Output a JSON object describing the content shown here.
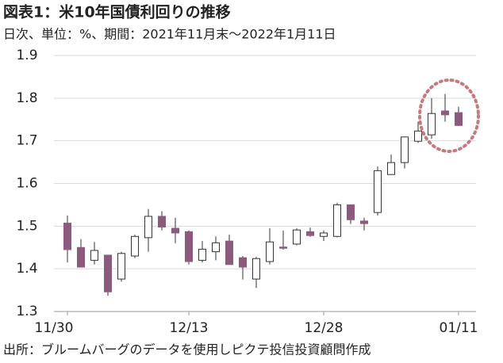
{
  "chart_data": {
    "type": "candlestick",
    "title": "図表1：米10年国債利回りの推移",
    "subtitle": "日次、単位：%、期間：2021年11月末～2022年1月11日",
    "source": "出所：ブルームバーグのデータを使用しピクテ投信投資顧問作成",
    "categories": [
      "11/30",
      null,
      null,
      null,
      null,
      null,
      null,
      null,
      null,
      "12/13",
      null,
      null,
      null,
      null,
      null,
      null,
      null,
      null,
      null,
      "12/28",
      null,
      null,
      null,
      null,
      null,
      null,
      null,
      null,
      null,
      "01/11"
    ],
    "open": [
      1.507,
      1.45,
      1.42,
      1.432,
      1.376,
      1.43,
      1.473,
      1.523,
      1.495,
      1.487,
      1.42,
      1.44,
      1.465,
      1.426,
      1.376,
      1.417,
      1.451,
      1.458,
      1.487,
      1.476,
      1.476,
      1.55,
      1.512,
      1.532,
      1.621,
      1.649,
      1.699,
      1.714,
      1.77,
      1.766
    ],
    "high": [
      1.525,
      1.47,
      1.463,
      1.432,
      1.44,
      1.48,
      1.54,
      1.535,
      1.52,
      1.49,
      1.465,
      1.476,
      1.48,
      1.43,
      1.428,
      1.495,
      1.49,
      1.495,
      1.497,
      1.49,
      1.555,
      1.55,
      1.52,
      1.64,
      1.668,
      1.71,
      1.745,
      1.8,
      1.81,
      1.78
    ],
    "low": [
      1.415,
      1.404,
      1.41,
      1.337,
      1.37,
      1.425,
      1.44,
      1.49,
      1.46,
      1.41,
      1.415,
      1.42,
      1.41,
      1.375,
      1.355,
      1.41,
      1.445,
      1.455,
      1.475,
      1.465,
      1.474,
      1.505,
      1.49,
      1.525,
      1.62,
      1.635,
      1.695,
      1.705,
      1.745,
      1.735
    ],
    "close": [
      1.445,
      1.404,
      1.443,
      1.346,
      1.436,
      1.476,
      1.523,
      1.498,
      1.484,
      1.417,
      1.446,
      1.461,
      1.41,
      1.404,
      1.424,
      1.463,
      1.449,
      1.491,
      1.478,
      1.484,
      1.55,
      1.515,
      1.506,
      1.63,
      1.649,
      1.709,
      1.723,
      1.764,
      1.761,
      1.736
    ],
    "up_color": "#ffffff",
    "down_color": "#8c5a7c",
    "edge_color": "#333333",
    "ylim": [
      1.3,
      1.9
    ],
    "yticks": [
      1.3,
      1.4,
      1.5,
      1.6,
      1.7,
      1.8,
      1.9
    ],
    "grid": true
  }
}
